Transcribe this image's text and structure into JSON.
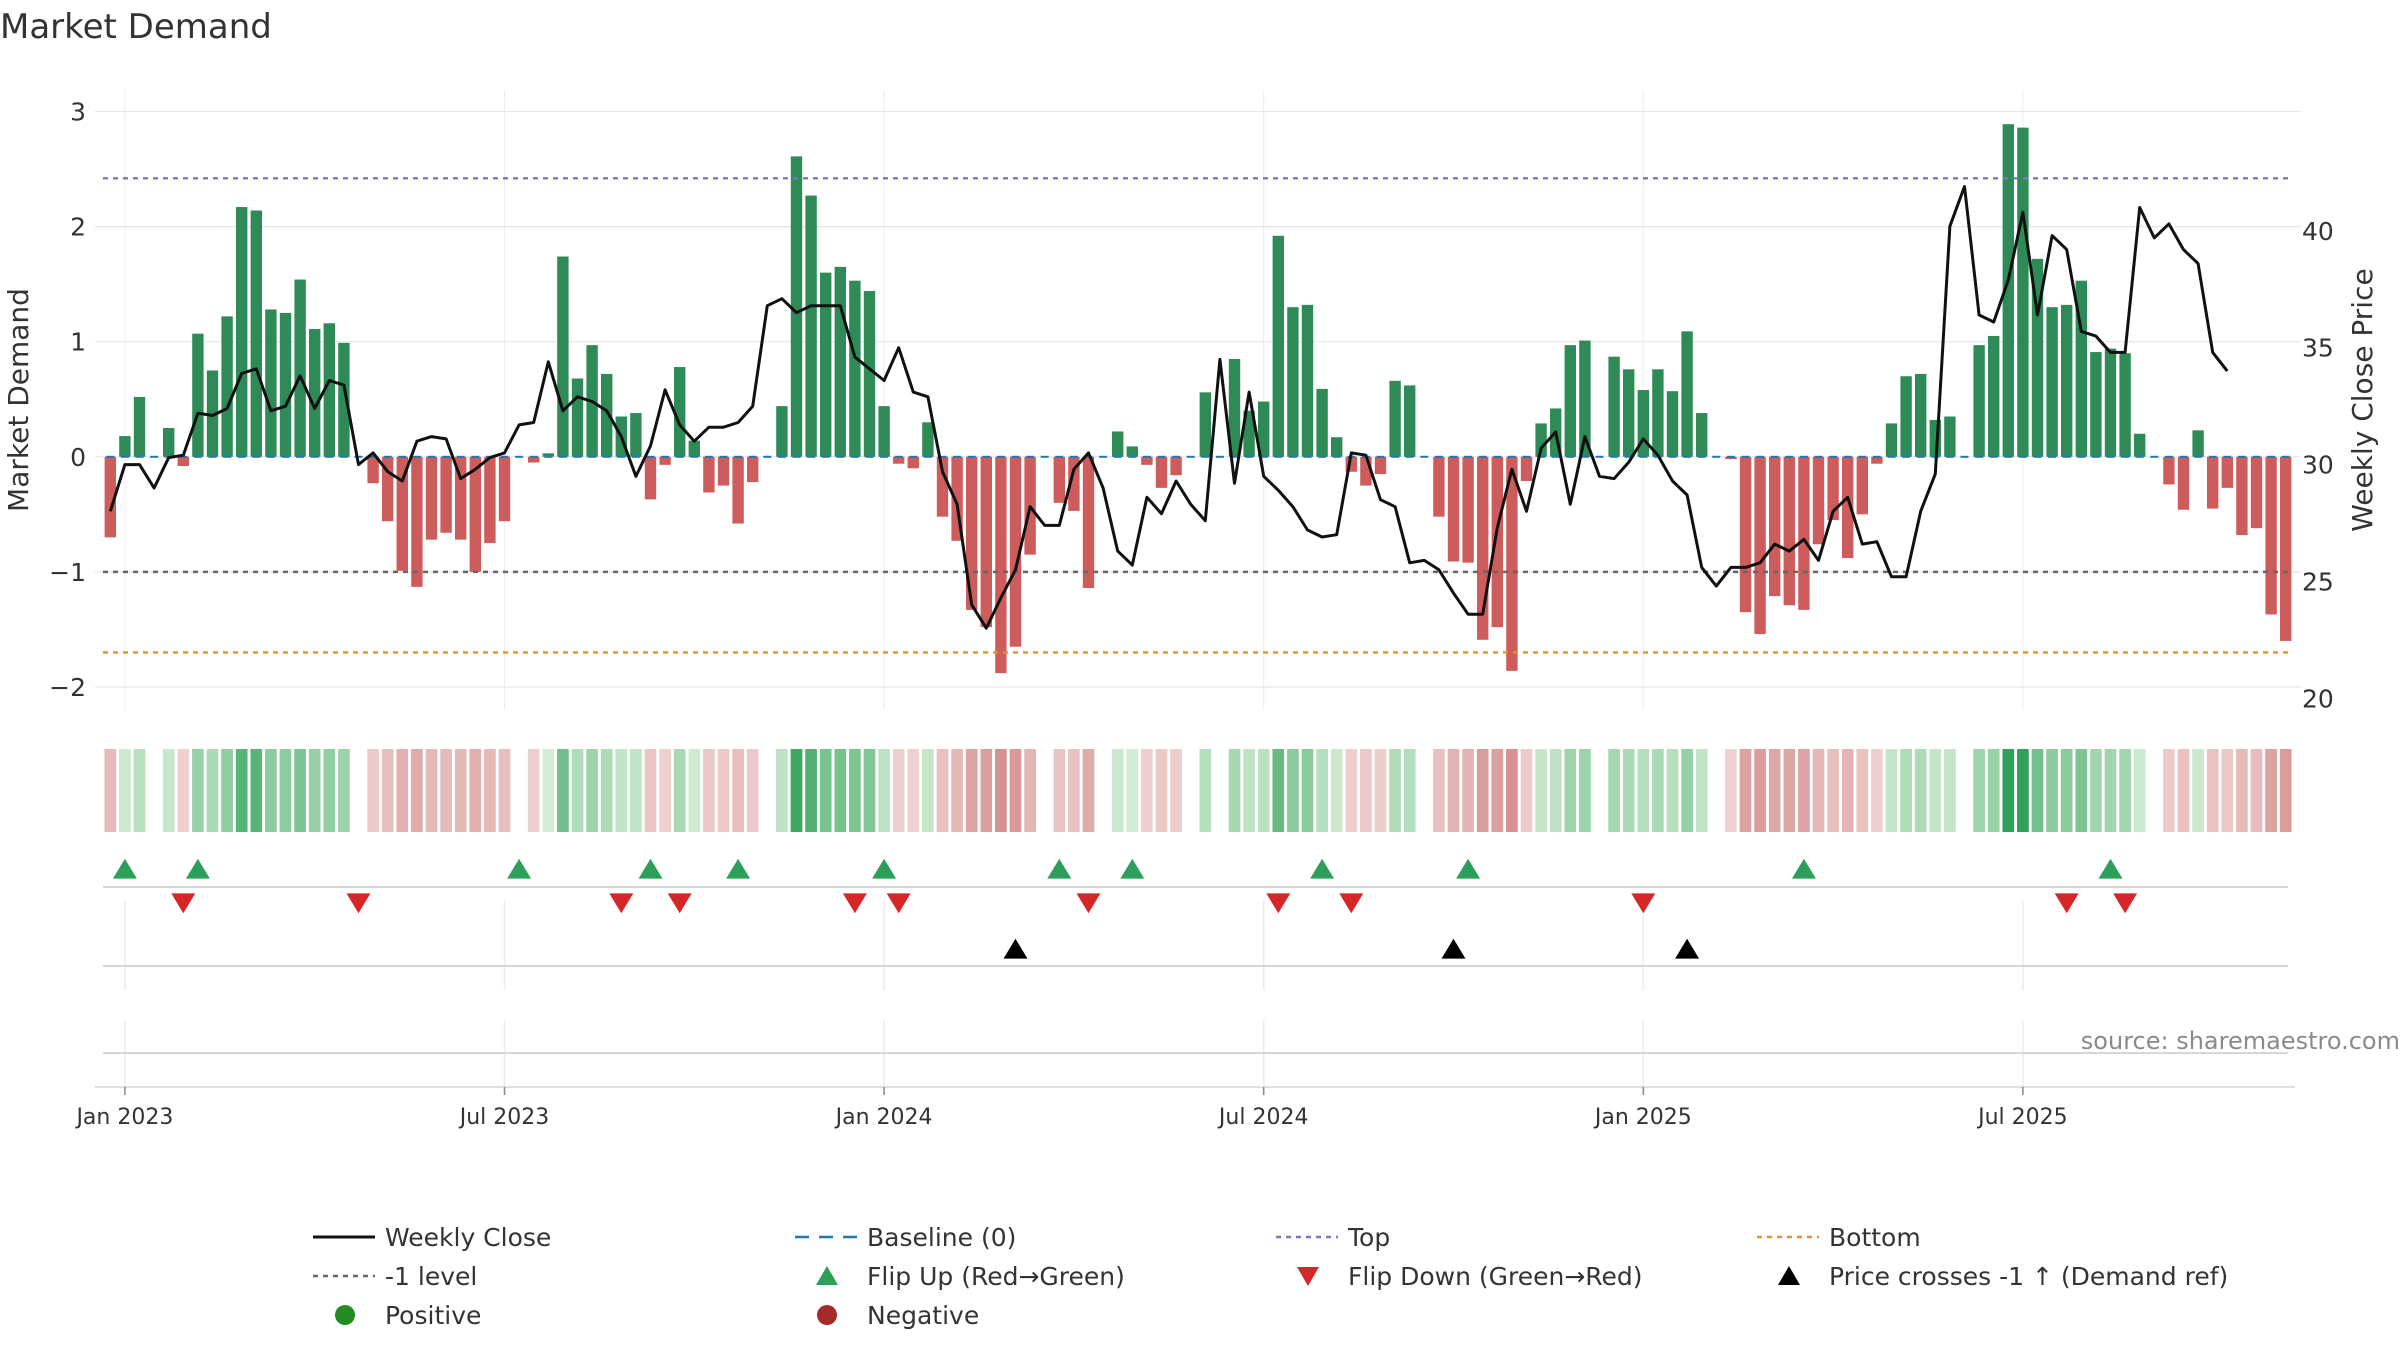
{
  "chart_data": {
    "type": "bar",
    "title": "Market Demand",
    "ylabel": "Market Demand",
    "y2label": "Weekly Close Price",
    "ylim": [
      -2.2,
      3.1
    ],
    "y2lim": [
      19.5,
      45.6
    ],
    "yticks": [
      3,
      2,
      1,
      0,
      -1,
      -2
    ],
    "yticklabels": [
      "3",
      "2",
      "1",
      "0",
      "−1",
      "−2"
    ],
    "y2ticks": [
      40,
      35,
      30,
      25,
      20
    ],
    "y2ticklabels": [
      "40",
      "35",
      "30",
      "25",
      "20"
    ],
    "xticklabels": [
      "Jan 2023",
      "Jul 2023",
      "Jan 2024",
      "Jul 2024",
      "Jan 2025",
      "Jul 2025"
    ],
    "xtick_week_index": [
      1.5,
      27.5,
      53.5,
      79.5,
      105.5,
      131.5
    ],
    "top_level": 2.42,
    "bottom_level": -1.7,
    "ref_level": -1.0,
    "colors": {
      "positive": "#2e8b57",
      "negative": "#cd5c5c",
      "close_line": "#111111",
      "top_line": "#7b74c9",
      "bottom_line": "#e0922b",
      "ref_line": "#666666",
      "baseline": "#1f77b4",
      "flip_up": "#2ca05a",
      "flip_down": "#d62728",
      "cross": "#000000",
      "positive_dot": "#228b22",
      "negative_dot": "#a52a2a"
    },
    "series": [
      {
        "name": "Market Demand",
        "values": [
          -0.7,
          0.18,
          0.52,
          0.0,
          0.25,
          -0.08,
          1.07,
          0.75,
          1.22,
          2.17,
          2.14,
          1.28,
          1.25,
          1.54,
          1.11,
          1.16,
          0.99,
          0.0,
          -0.23,
          -0.56,
          -0.99,
          -1.13,
          -0.72,
          -0.66,
          -0.72,
          -1.0,
          -0.75,
          -0.56,
          0.0,
          -0.05,
          0.03,
          1.74,
          0.68,
          0.97,
          0.72,
          0.35,
          0.38,
          -0.37,
          -0.07,
          0.78,
          0.14,
          -0.31,
          -0.25,
          -0.58,
          -0.22,
          0.0,
          0.44,
          2.61,
          2.27,
          1.6,
          1.65,
          1.53,
          1.44,
          0.44,
          -0.06,
          -0.1,
          0.3,
          -0.52,
          -0.73,
          -1.33,
          -1.48,
          -1.88,
          -1.65,
          -0.85,
          0.0,
          -0.4,
          -0.47,
          -1.14,
          0.0,
          0.22,
          0.09,
          -0.07,
          -0.27,
          -0.16,
          0.0,
          0.56,
          0.0,
          0.85,
          0.4,
          0.48,
          1.92,
          1.3,
          1.32,
          0.59,
          0.17,
          -0.13,
          -0.25,
          -0.15,
          0.66,
          0.62,
          0.0,
          -0.52,
          -0.91,
          -0.92,
          -1.59,
          -1.48,
          -1.86,
          -0.21,
          0.29,
          0.42,
          0.97,
          1.01,
          0.0,
          0.87,
          0.76,
          0.58,
          0.76,
          0.57,
          1.09,
          0.38,
          0.0,
          -0.02,
          -1.35,
          -1.54,
          -1.21,
          -1.29,
          -1.33,
          -0.76,
          -0.55,
          -0.88,
          -0.5,
          -0.06,
          0.29,
          0.7,
          0.72,
          0.32,
          0.35,
          0.0,
          0.97,
          1.05,
          2.89,
          2.86,
          1.72,
          1.3,
          1.32,
          1.53,
          0.91,
          0.94,
          0.9,
          0.2,
          0.0,
          -0.24,
          -0.46,
          0.23,
          -0.45,
          -0.27,
          -0.68,
          -0.62,
          -1.37,
          -1.6
        ]
      },
      {
        "name": "Weekly Close",
        "values": [
          28.0,
          30.0,
          30.0,
          29.0,
          30.3,
          30.4,
          32.2,
          32.1,
          32.4,
          33.9,
          34.1,
          32.3,
          32.5,
          33.8,
          32.4,
          33.6,
          33.4,
          30.0,
          30.5,
          29.7,
          29.3,
          31.0,
          31.2,
          31.1,
          29.4,
          29.8,
          30.3,
          30.5,
          31.7,
          31.8,
          34.4,
          32.3,
          32.9,
          32.7,
          32.3,
          31.2,
          29.5,
          30.8,
          33.2,
          31.7,
          31.0,
          31.6,
          31.6,
          31.8,
          32.5,
          36.8,
          37.1,
          36.5,
          36.8,
          36.8,
          36.8,
          34.6,
          34.1,
          33.6,
          35.0,
          33.1,
          32.9,
          29.7,
          28.3,
          24.0,
          23.0,
          24.3,
          25.5,
          28.2,
          27.4,
          27.4,
          29.8,
          30.5,
          29.0,
          26.3,
          25.7,
          28.6,
          27.9,
          29.3,
          28.3,
          27.6,
          34.5,
          29.2,
          33.1,
          29.5,
          28.9,
          28.2,
          27.2,
          26.9,
          27.0,
          30.5,
          30.4,
          28.5,
          28.2,
          25.8,
          25.9,
          25.5,
          24.5,
          23.6,
          23.6,
          27.3,
          29.8,
          28.0,
          30.7,
          31.4,
          28.3,
          31.2,
          29.5,
          29.4,
          30.1,
          31.1,
          30.4,
          29.3,
          28.7,
          25.6,
          24.8,
          25.6,
          25.6,
          25.8,
          26.6,
          26.3,
          26.8,
          25.9,
          28.0,
          28.6,
          26.6,
          26.7,
          25.2,
          25.2,
          28.0,
          29.6,
          40.2,
          41.9,
          36.4,
          36.1,
          37.9,
          40.8,
          36.4,
          39.8,
          39.2,
          35.7,
          35.5,
          34.8,
          34.8,
          41.0,
          39.7,
          40.3,
          39.2,
          38.6,
          34.8,
          34.0
        ]
      }
    ],
    "flip_up_weeks": [
      1,
      6,
      28,
      37,
      43,
      53,
      65,
      70,
      83,
      93,
      116,
      137
    ],
    "flip_down_weeks": [
      5,
      17,
      35,
      39,
      51,
      54,
      67,
      80,
      85,
      105,
      134,
      138
    ],
    "cross_weeks": [
      62,
      92,
      108
    ],
    "source": "source: sharemaestro.com",
    "legend": [
      {
        "key": "close",
        "label": "Weekly Close"
      },
      {
        "key": "baseline",
        "label": "Baseline (0)"
      },
      {
        "key": "top",
        "label": "Top"
      },
      {
        "key": "bottom",
        "label": "Bottom"
      },
      {
        "key": "ref",
        "label": "-1 level"
      },
      {
        "key": "flipup",
        "label": "Flip Up (Red→Green)"
      },
      {
        "key": "flipdown",
        "label": "Flip Down (Green→Red)"
      },
      {
        "key": "cross",
        "label": "Price crosses -1 ↑ (Demand ref)"
      },
      {
        "key": "pos",
        "label": "Positive"
      },
      {
        "key": "neg",
        "label": "Negative"
      }
    ]
  }
}
